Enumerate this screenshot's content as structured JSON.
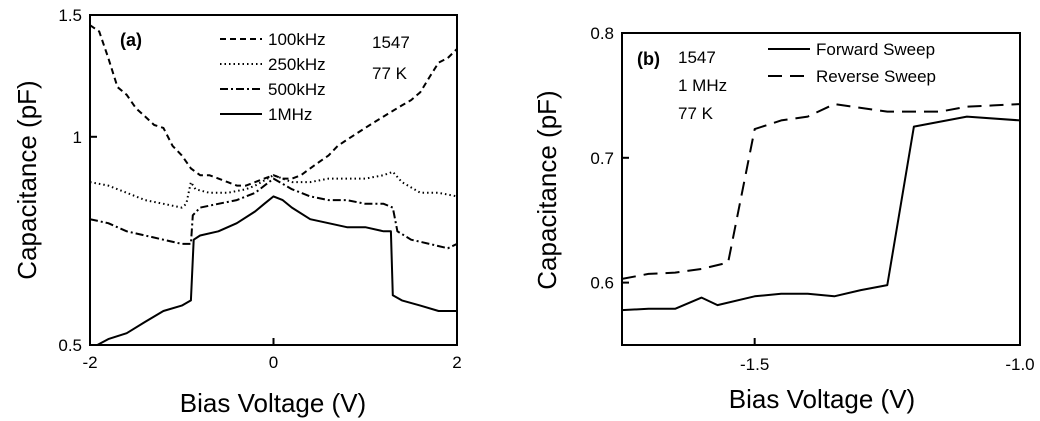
{
  "chart_data": [
    {
      "panel": "(a)",
      "type": "line",
      "xlabel": "Bias Voltage (V)",
      "ylabel": "Capacitance (pF)",
      "xlim": [
        -2,
        2
      ],
      "ylim": [
        0.5,
        1.5
      ],
      "yscale": "log",
      "xticks": [
        -2,
        0,
        2
      ],
      "xtick_labels": [
        "-2",
        "0",
        "2"
      ],
      "yticks": [
        0.5,
        1,
        1.5
      ],
      "ytick_labels": [
        "0.5",
        "1",
        "1.5"
      ],
      "legend_position": "top",
      "annotations": [
        "1547",
        "77 K"
      ],
      "series": [
        {
          "name": "100kHz",
          "dash": "6,4",
          "points": [
            [
              -2.0,
              1.45
            ],
            [
              -1.9,
              1.42
            ],
            [
              -1.8,
              1.3
            ],
            [
              -1.7,
              1.18
            ],
            [
              -1.6,
              1.15
            ],
            [
              -1.5,
              1.1
            ],
            [
              -1.4,
              1.07
            ],
            [
              -1.3,
              1.04
            ],
            [
              -1.2,
              1.03
            ],
            [
              -1.1,
              0.97
            ],
            [
              -1.0,
              0.94
            ],
            [
              -0.9,
              0.9
            ],
            [
              -0.8,
              0.88
            ],
            [
              -0.7,
              0.88
            ],
            [
              -0.6,
              0.87
            ],
            [
              -0.5,
              0.86
            ],
            [
              -0.4,
              0.85
            ],
            [
              -0.3,
              0.85
            ],
            [
              -0.2,
              0.86
            ],
            [
              -0.1,
              0.87
            ],
            [
              0.0,
              0.88
            ],
            [
              0.1,
              0.87
            ],
            [
              0.2,
              0.87
            ],
            [
              0.3,
              0.88
            ],
            [
              0.4,
              0.9
            ],
            [
              0.5,
              0.92
            ],
            [
              0.6,
              0.94
            ],
            [
              0.7,
              0.97
            ],
            [
              0.8,
              0.99
            ],
            [
              0.9,
              1.01
            ],
            [
              1.0,
              1.03
            ],
            [
              1.1,
              1.05
            ],
            [
              1.2,
              1.07
            ],
            [
              1.3,
              1.09
            ],
            [
              1.4,
              1.11
            ],
            [
              1.5,
              1.13
            ],
            [
              1.6,
              1.16
            ],
            [
              1.7,
              1.22
            ],
            [
              1.8,
              1.28
            ],
            [
              1.9,
              1.3
            ],
            [
              2.0,
              1.34
            ]
          ]
        },
        {
          "name": "250kHz",
          "dash": "1.5,3",
          "points": [
            [
              -2.0,
              0.86
            ],
            [
              -1.8,
              0.85
            ],
            [
              -1.6,
              0.83
            ],
            [
              -1.4,
              0.81
            ],
            [
              -1.2,
              0.8
            ],
            [
              -1.0,
              0.79
            ],
            [
              -0.95,
              0.8
            ],
            [
              -0.9,
              0.86
            ],
            [
              -0.85,
              0.84
            ],
            [
              -0.7,
              0.83
            ],
            [
              -0.5,
              0.83
            ],
            [
              -0.3,
              0.84
            ],
            [
              -0.2,
              0.85
            ],
            [
              0.0,
              0.88
            ],
            [
              0.2,
              0.86
            ],
            [
              0.4,
              0.86
            ],
            [
              0.6,
              0.87
            ],
            [
              0.8,
              0.87
            ],
            [
              1.0,
              0.87
            ],
            [
              1.2,
              0.88
            ],
            [
              1.3,
              0.89
            ],
            [
              1.4,
              0.86
            ],
            [
              1.6,
              0.83
            ],
            [
              1.8,
              0.83
            ],
            [
              2.0,
              0.82
            ]
          ]
        },
        {
          "name": "500kHz",
          "dash": "8,3,2,3",
          "points": [
            [
              -2.0,
              0.76
            ],
            [
              -1.8,
              0.75
            ],
            [
              -1.6,
              0.73
            ],
            [
              -1.4,
              0.72
            ],
            [
              -1.2,
              0.71
            ],
            [
              -1.0,
              0.7
            ],
            [
              -0.9,
              0.7
            ],
            [
              -0.88,
              0.77
            ],
            [
              -0.8,
              0.79
            ],
            [
              -0.6,
              0.8
            ],
            [
              -0.4,
              0.81
            ],
            [
              -0.2,
              0.83
            ],
            [
              0.0,
              0.87
            ],
            [
              0.2,
              0.84
            ],
            [
              0.4,
              0.82
            ],
            [
              0.6,
              0.81
            ],
            [
              0.8,
              0.81
            ],
            [
              1.0,
              0.8
            ],
            [
              1.2,
              0.8
            ],
            [
              1.3,
              0.79
            ],
            [
              1.35,
              0.73
            ],
            [
              1.5,
              0.71
            ],
            [
              1.7,
              0.7
            ],
            [
              1.9,
              0.69
            ],
            [
              2.0,
              0.7
            ]
          ]
        },
        {
          "name": "1MHz",
          "dash": "",
          "points": [
            [
              -1.92,
              0.5
            ],
            [
              -1.8,
              0.51
            ],
            [
              -1.6,
              0.52
            ],
            [
              -1.4,
              0.54
            ],
            [
              -1.2,
              0.56
            ],
            [
              -1.0,
              0.57
            ],
            [
              -0.9,
              0.58
            ],
            [
              -0.87,
              0.71
            ],
            [
              -0.8,
              0.72
            ],
            [
              -0.6,
              0.73
            ],
            [
              -0.4,
              0.75
            ],
            [
              -0.2,
              0.78
            ],
            [
              -0.1,
              0.8
            ],
            [
              0.0,
              0.82
            ],
            [
              0.1,
              0.81
            ],
            [
              0.2,
              0.79
            ],
            [
              0.4,
              0.76
            ],
            [
              0.6,
              0.75
            ],
            [
              0.8,
              0.74
            ],
            [
              1.0,
              0.74
            ],
            [
              1.2,
              0.73
            ],
            [
              1.28,
              0.73
            ],
            [
              1.3,
              0.59
            ],
            [
              1.4,
              0.58
            ],
            [
              1.6,
              0.57
            ],
            [
              1.8,
              0.56
            ],
            [
              2.0,
              0.56
            ]
          ]
        }
      ]
    },
    {
      "panel": "(b)",
      "type": "line",
      "xlabel": "Bias Voltage (V)",
      "ylabel": "Capacitance (pF)",
      "xlim": [
        -1.75,
        -1.0
      ],
      "ylim": [
        0.55,
        0.8
      ],
      "xticks": [
        -1.5,
        -1.0
      ],
      "xtick_labels": [
        "-1.5",
        "-1.0"
      ],
      "yticks": [
        0.6,
        0.7,
        0.8
      ],
      "ytick_labels": [
        "0.6",
        "0.7",
        "0.8"
      ],
      "legend_position": "top-right",
      "annotations": [
        "1547",
        "1 MHz",
        "77 K"
      ],
      "series": [
        {
          "name": "Forward Sweep",
          "dash": "",
          "points": [
            [
              -1.75,
              0.578
            ],
            [
              -1.7,
              0.579
            ],
            [
              -1.65,
              0.579
            ],
            [
              -1.6,
              0.588
            ],
            [
              -1.57,
              0.582
            ],
            [
              -1.5,
              0.589
            ],
            [
              -1.45,
              0.591
            ],
            [
              -1.4,
              0.591
            ],
            [
              -1.35,
              0.589
            ],
            [
              -1.3,
              0.594
            ],
            [
              -1.25,
              0.598
            ],
            [
              -1.2,
              0.725
            ],
            [
              -1.1,
              0.733
            ],
            [
              -1.0,
              0.73
            ]
          ]
        },
        {
          "name": "Reverse Sweep",
          "dash": "14,8",
          "points": [
            [
              -1.75,
              0.603
            ],
            [
              -1.7,
              0.607
            ],
            [
              -1.65,
              0.608
            ],
            [
              -1.6,
              0.611
            ],
            [
              -1.55,
              0.616
            ],
            [
              -1.5,
              0.723
            ],
            [
              -1.45,
              0.73
            ],
            [
              -1.4,
              0.733
            ],
            [
              -1.35,
              0.743
            ],
            [
              -1.3,
              0.74
            ],
            [
              -1.25,
              0.737
            ],
            [
              -1.2,
              0.737
            ],
            [
              -1.15,
              0.737
            ],
            [
              -1.1,
              0.741
            ],
            [
              -1.05,
              0.742
            ],
            [
              -1.0,
              0.743
            ]
          ]
        }
      ]
    }
  ]
}
